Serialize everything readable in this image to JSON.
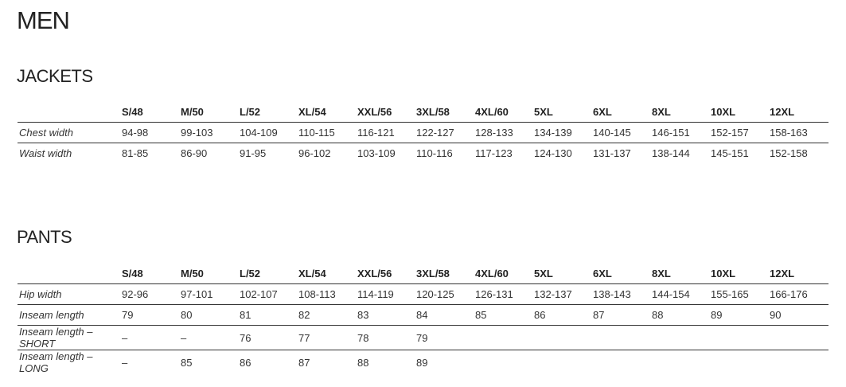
{
  "page_title": "MEN",
  "jackets": {
    "title": "JACKETS",
    "sizes": [
      "S/48",
      "M/50",
      "L/52",
      "XL/54",
      "XXL/56",
      "3XL/58",
      "4XL/60",
      "5XL",
      "6XL",
      "8XL",
      "10XL",
      "12XL"
    ],
    "rows": [
      {
        "label": "Chest width",
        "values": [
          "94-98",
          "99-103",
          "104-109",
          "110-115",
          "116-121",
          "122-127",
          "128-133",
          "134-139",
          "140-145",
          "146-151",
          "152-157",
          "158-163"
        ]
      },
      {
        "label": "Waist width",
        "values": [
          "81-85",
          "86-90",
          "91-95",
          "96-102",
          "103-109",
          "110-116",
          "117-123",
          "124-130",
          "131-137",
          "138-144",
          "145-151",
          "152-158"
        ]
      }
    ]
  },
  "pants": {
    "title": "PANTS",
    "sizes": [
      "S/48",
      "M/50",
      "L/52",
      "XL/54",
      "XXL/56",
      "3XL/58",
      "4XL/60",
      "5XL",
      "6XL",
      "8XL",
      "10XL",
      "12XL"
    ],
    "rows": [
      {
        "label": "Hip width",
        "values": [
          "92-96",
          "97-101",
          "102-107",
          "108-113",
          "114-119",
          "120-125",
          "126-131",
          "132-137",
          "138-143",
          "144-154",
          "155-165",
          "166-176"
        ]
      },
      {
        "label": "Inseam length",
        "values": [
          "79",
          "80",
          "81",
          "82",
          "83",
          "84",
          "85",
          "86",
          "87",
          "88",
          "89",
          "90"
        ]
      },
      {
        "label": "Inseam length – SHORT",
        "values": [
          "–",
          "–",
          "76",
          "77",
          "78",
          "79",
          "",
          "",
          "",
          "",
          "",
          ""
        ]
      },
      {
        "label": "Inseam length – LONG",
        "values": [
          "–",
          "85",
          "86",
          "87",
          "88",
          "89",
          "",
          "",
          "",
          "",
          "",
          ""
        ]
      }
    ]
  }
}
